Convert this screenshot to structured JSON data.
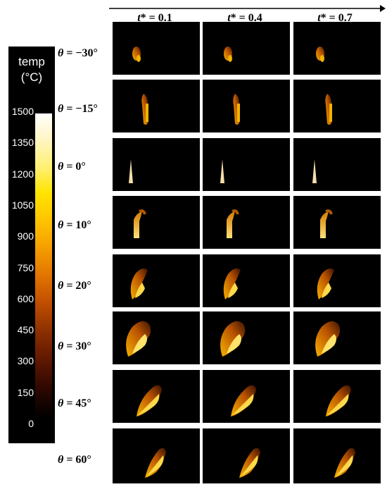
{
  "colorbar": {
    "title_line1": "temp",
    "title_line2": "(°C)",
    "ticks": [
      "1500",
      "1350",
      "1200",
      "1050",
      "900",
      "750",
      "600",
      "450",
      "300",
      "150",
      "0"
    ]
  },
  "time_axis": {
    "variable": "t*",
    "columns": [
      "= 0.1",
      "= 0.4",
      "= 0.7"
    ]
  },
  "angle_rows": {
    "variable": "θ",
    "labels": [
      "= −30°",
      "= −15°",
      "= 0°",
      "= 10°",
      "= 20°",
      "= 30°",
      "= 45°",
      "= 60°"
    ]
  }
}
